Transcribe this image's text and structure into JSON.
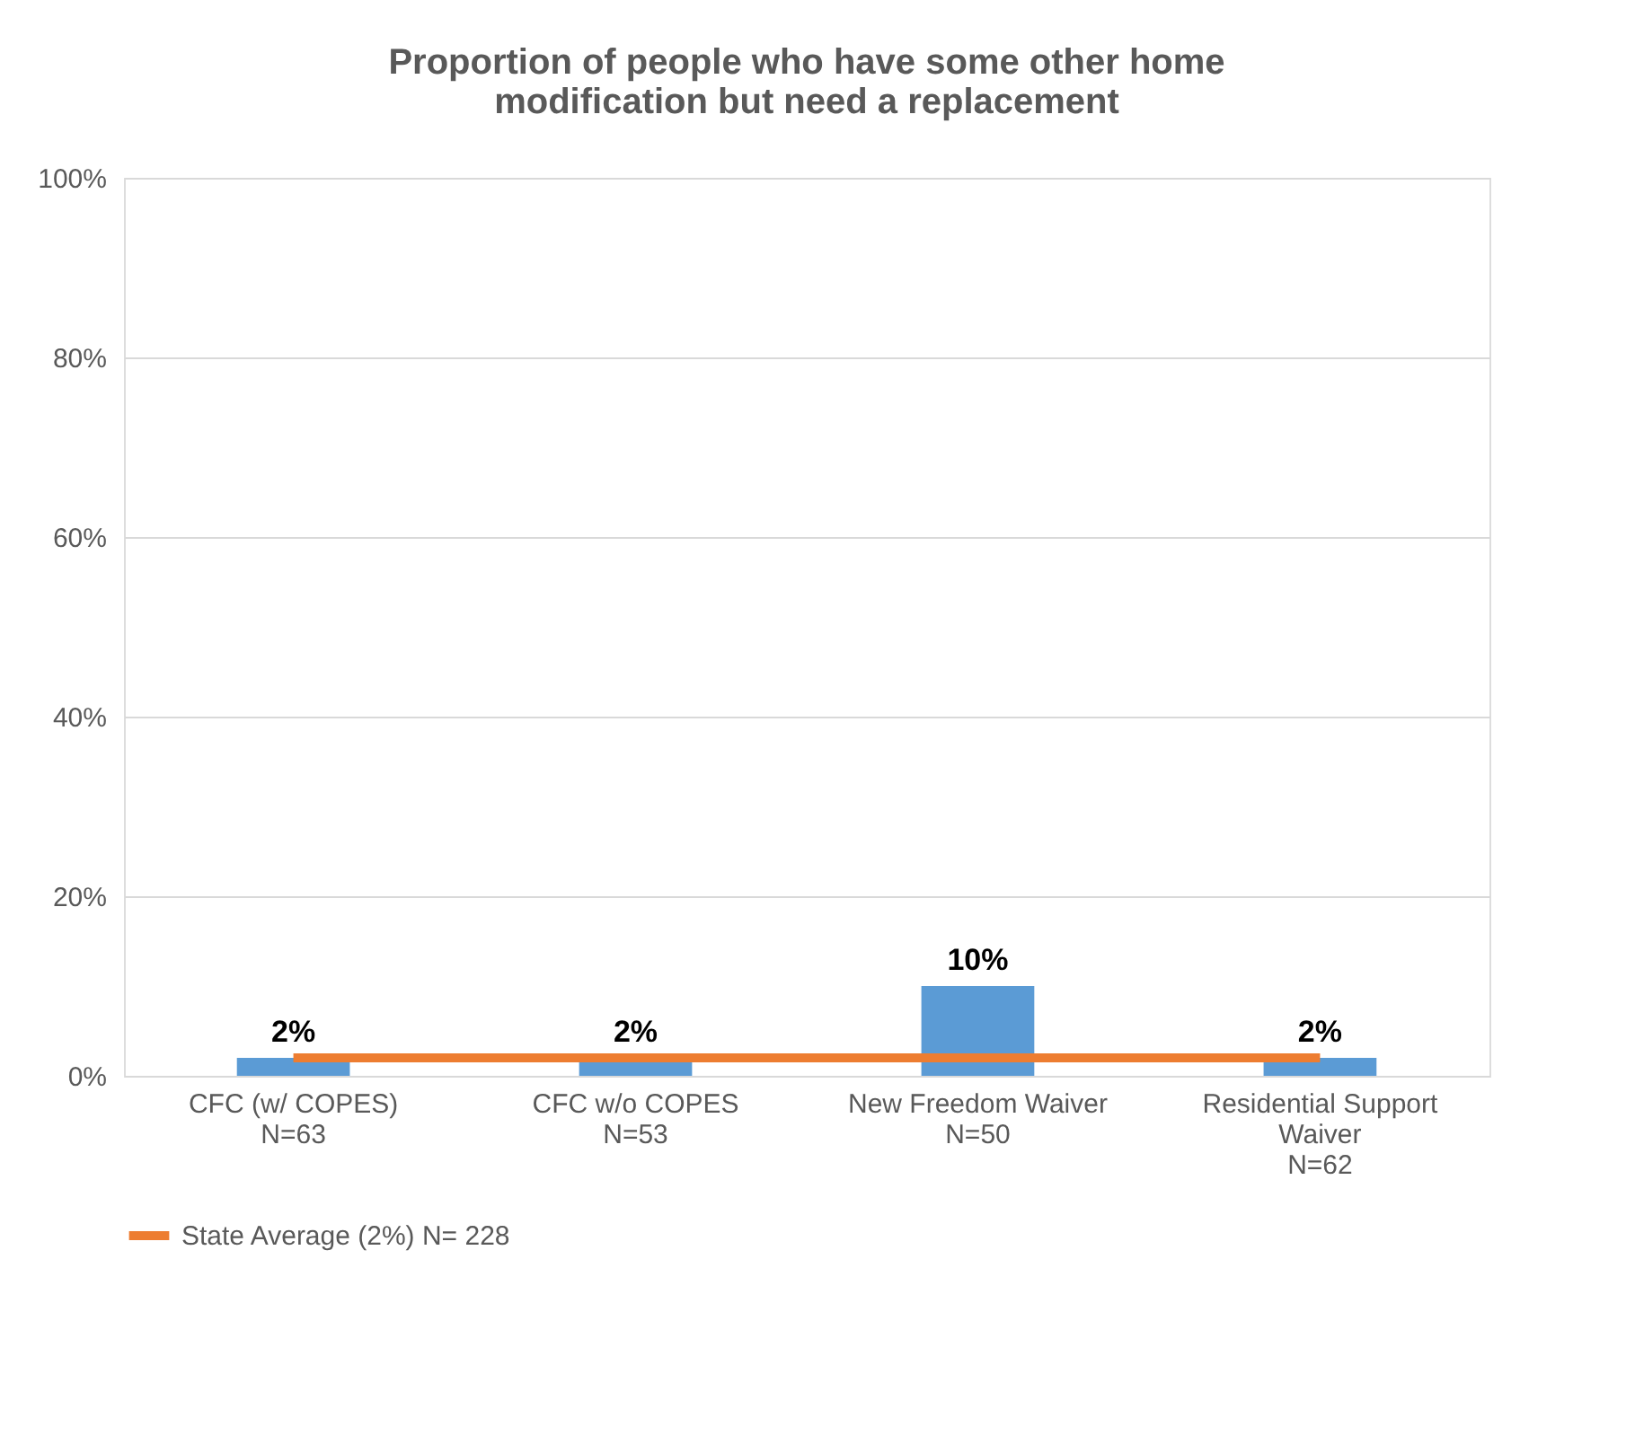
{
  "chart_data": {
    "type": "bar",
    "title": "Proportion of people who have some other home modification but need a replacement",
    "categories": [
      "CFC (w/ COPES)\nN=63",
      "CFC w/o COPES\nN=53",
      "New Freedom Waiver\nN=50",
      "Residential Support\nWaiver\nN=62"
    ],
    "series": [
      {
        "color": "#5b9bd5",
        "values": [
          2,
          2,
          10,
          2
        ],
        "value_labels": [
          "2%",
          "2%",
          "10%",
          "2%"
        ]
      },
      {
        "type": "line",
        "name": "State Average (2%) N= 228",
        "color": "#ed7d31",
        "values": [
          2,
          2,
          2,
          2
        ]
      }
    ],
    "ylim": [
      0,
      100
    ],
    "yticks": [
      {
        "value": 0,
        "label": "0%"
      },
      {
        "value": 20,
        "label": "20%"
      },
      {
        "value": 40,
        "label": "40%"
      },
      {
        "value": 60,
        "label": "60%"
      },
      {
        "value": 80,
        "label": "80%"
      },
      {
        "value": 100,
        "label": "100%"
      }
    ],
    "grid": "y",
    "legend": "bottom"
  }
}
